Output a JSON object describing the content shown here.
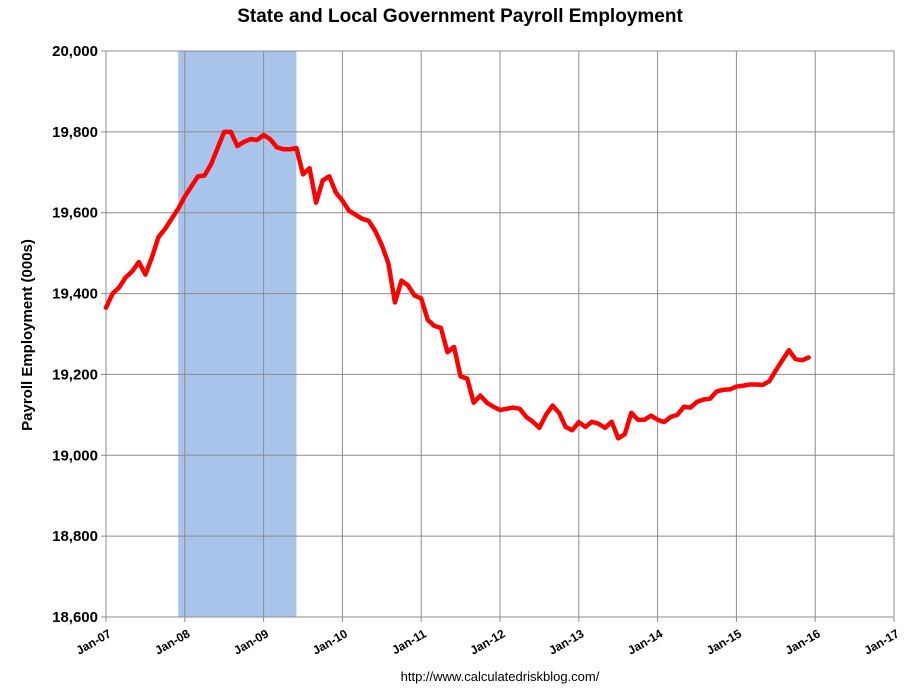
{
  "chart_data": {
    "type": "line",
    "title": "State and Local Government Payroll Employment",
    "ylabel": "Payroll Employment (000s)",
    "xlabel": "",
    "source": "http://www.calculatedriskblog.com/",
    "ylim": [
      18600,
      20000
    ],
    "yticks": [
      18600,
      18800,
      19000,
      19200,
      19400,
      19600,
      19800,
      20000
    ],
    "ytick_labels": [
      "18,600",
      "18,800",
      "19,000",
      "19,200",
      "19,400",
      "19,600",
      "19,800",
      "20,000"
    ],
    "xticks": [
      "Jan-07",
      "Jan-08",
      "Jan-09",
      "Jan-10",
      "Jan-11",
      "Jan-12",
      "Jan-13",
      "Jan-14",
      "Jan-15",
      "Jan-16",
      "Jan-17"
    ],
    "grid": true,
    "recession_shading": {
      "start": "Dec-07",
      "end": "Jun-09",
      "color": "#a9c4ea"
    },
    "series": [
      {
        "color": "#ff0000",
        "x": [
          "Jan-07",
          "Feb-07",
          "Mar-07",
          "Apr-07",
          "May-07",
          "Jun-07",
          "Jul-07",
          "Aug-07",
          "Sep-07",
          "Oct-07",
          "Nov-07",
          "Dec-07",
          "Jan-08",
          "Feb-08",
          "Mar-08",
          "Apr-08",
          "May-08",
          "Jun-08",
          "Jul-08",
          "Aug-08",
          "Sep-08",
          "Oct-08",
          "Nov-08",
          "Dec-08",
          "Jan-09",
          "Feb-09",
          "Mar-09",
          "Apr-09",
          "May-09",
          "Jun-09",
          "Jul-09",
          "Aug-09",
          "Sep-09",
          "Oct-09",
          "Nov-09",
          "Dec-09",
          "Jan-10",
          "Feb-10",
          "Mar-10",
          "Apr-10",
          "May-10",
          "Jun-10",
          "Jul-10",
          "Aug-10",
          "Sep-10",
          "Oct-10",
          "Nov-10",
          "Dec-10",
          "Jan-11",
          "Feb-11",
          "Mar-11",
          "Apr-11",
          "May-11",
          "Jun-11",
          "Jul-11",
          "Aug-11",
          "Sep-11",
          "Oct-11",
          "Nov-11",
          "Dec-11",
          "Jan-12",
          "Feb-12",
          "Mar-12",
          "Apr-12",
          "May-12",
          "Jun-12",
          "Jul-12",
          "Aug-12",
          "Sep-12",
          "Oct-12",
          "Nov-12",
          "Dec-12",
          "Jan-13",
          "Feb-13",
          "Mar-13",
          "Apr-13",
          "May-13",
          "Jun-13",
          "Jul-13",
          "Aug-13",
          "Sep-13",
          "Oct-13",
          "Nov-13",
          "Dec-13",
          "Jan-14",
          "Feb-14",
          "Mar-14",
          "Apr-14",
          "May-14",
          "Jun-14",
          "Jul-14",
          "Aug-14",
          "Sep-14",
          "Oct-14",
          "Nov-14",
          "Dec-14",
          "Jan-15",
          "Feb-15",
          "Mar-15",
          "Apr-15",
          "May-15",
          "Jun-15",
          "Jul-15",
          "Aug-15",
          "Sep-15",
          "Oct-15",
          "Nov-15",
          "Dec-15"
        ],
        "values": [
          19365,
          19400,
          19415,
          19440,
          19455,
          19478,
          19447,
          19490,
          19540,
          19560,
          19585,
          19610,
          19640,
          19665,
          19690,
          19692,
          19720,
          19760,
          19800,
          19800,
          19765,
          19775,
          19782,
          19780,
          19792,
          19782,
          19762,
          19757,
          19757,
          19760,
          19695,
          19710,
          19625,
          19680,
          19690,
          19650,
          19630,
          19605,
          19595,
          19585,
          19580,
          19555,
          19520,
          19475,
          19378,
          19432,
          19420,
          19395,
          19388,
          19335,
          19320,
          19315,
          19255,
          19268,
          19195,
          19190,
          19130,
          19148,
          19130,
          19120,
          19112,
          19115,
          19118,
          19115,
          19095,
          19083,
          19068,
          19100,
          19123,
          19105,
          19070,
          19062,
          19082,
          19070,
          19083,
          19078,
          19068,
          19083,
          19042,
          19052,
          19105,
          19088,
          19088,
          19098,
          19088,
          19082,
          19095,
          19100,
          19120,
          19118,
          19132,
          19138,
          19140,
          19158,
          19162,
          19163,
          19170,
          19172,
          19175,
          19175,
          19174,
          19183,
          19210,
          19235,
          19260,
          19238,
          19235,
          19242
        ]
      }
    ]
  }
}
